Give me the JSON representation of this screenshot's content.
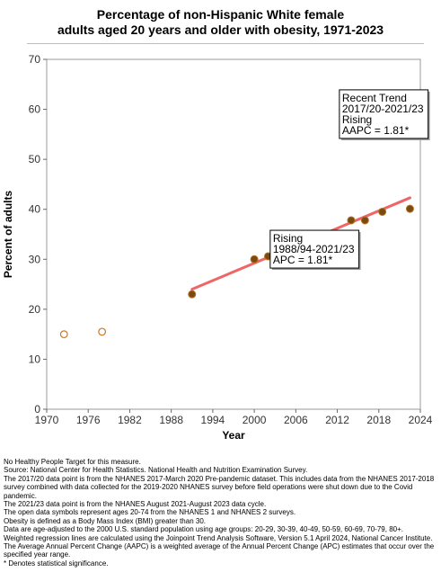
{
  "title_line1": "Percentage of non-Hispanic White female",
  "title_line2": "adults aged 20 years and older with obesity, 1971-2023",
  "chart_data": {
    "type": "scatter",
    "title": "Percentage of non-Hispanic White female adults aged 20 years and older with obesity, 1971-2023",
    "xlabel": "Year",
    "ylabel": "Percent of adults",
    "xlim": [
      1970,
      2024
    ],
    "ylim": [
      0,
      70
    ],
    "x_ticks": [
      "1970",
      "1976",
      "1982",
      "1988",
      "1994",
      "2000",
      "2006",
      "2012",
      "2018",
      "2024"
    ],
    "y_ticks": [
      "0",
      "10",
      "20",
      "30",
      "40",
      "50",
      "60",
      "70"
    ],
    "grid": false,
    "points": [
      {
        "x": 1972.5,
        "y": 15.0,
        "filled": false
      },
      {
        "x": 1978.0,
        "y": 15.5,
        "filled": false
      },
      {
        "x": 1991.0,
        "y": 23.0,
        "filled": true
      },
      {
        "x": 2000.0,
        "y": 30.0,
        "filled": true
      },
      {
        "x": 2002.0,
        "y": 30.6,
        "filled": true
      },
      {
        "x": 2004.0,
        "y": 29.9,
        "filled": true
      },
      {
        "x": 2006.0,
        "y": 32.9,
        "filled": true
      },
      {
        "x": 2008.0,
        "y": 32.9,
        "filled": true
      },
      {
        "x": 2010.0,
        "y": 32.2,
        "filled": true
      },
      {
        "x": 2012.0,
        "y": 33.1,
        "filled": true
      },
      {
        "x": 2014.0,
        "y": 37.8,
        "filled": true
      },
      {
        "x": 2016.0,
        "y": 37.8,
        "filled": true
      },
      {
        "x": 2018.5,
        "y": 39.5,
        "filled": true
      },
      {
        "x": 2022.5,
        "y": 40.1,
        "filled": true
      }
    ],
    "trend_line": {
      "x": [
        1991.0,
        2022.5
      ],
      "y_start": 24.0,
      "y_end": 42.3
    },
    "annotations": [
      {
        "lines": [
          "Rising",
          "1988/94-2021/23",
          "APC =  1.81*"
        ],
        "anchor_x": 2002.3,
        "anchor_y": 35.8
      },
      {
        "lines": [
          "Recent Trend",
          "2017/20-2021/23",
          "Rising",
          "AAPC =  1.81*"
        ],
        "anchor_x": 2012.3,
        "anchor_y": 63.9
      }
    ],
    "colors": {
      "trend": "#ee6666",
      "marker_fill": "#7a4a12",
      "marker_stroke": "#b57322",
      "open_stroke": "#c8782a"
    }
  },
  "notes": [
    "No Healthy People Target for this measure.",
    "Source: National Center for Health Statistics. National Health and Nutrition Examination Survey.",
    "The 2017/20 data point is from the NHANES 2017-March 2020 Pre-pandemic dataset. This includes data from the NHANES 2017-2018 survey combined with data collected for the 2019-2020 NHANES survey before field operations were shut down due to the Covid pandemic.",
    "The 2021/23 data point is from the NHANES August 2021-August 2023 data cycle.",
    "The open data symbols represent ages 20-74 from the NHANES 1 and NHANES 2 surveys.",
    "Obesity is defined as a Body Mass Index (BMI) greater than 30.",
    "Data are age-adjusted to the 2000 U.S. standard population using age groups: 20-29, 30-39, 40-49, 50-59, 60-69, 70-79, 80+.",
    "Weighted regression lines are calculated using the Joinpoint Trend Analysis Software, Version 5.1 April 2024, National Cancer Institute.",
    "The Average Annual Percent Change (AAPC) is a weighted average of the Annual Percent Change (APC) estimates that occur over the specified year range.",
    "* Denotes statistical significance."
  ]
}
